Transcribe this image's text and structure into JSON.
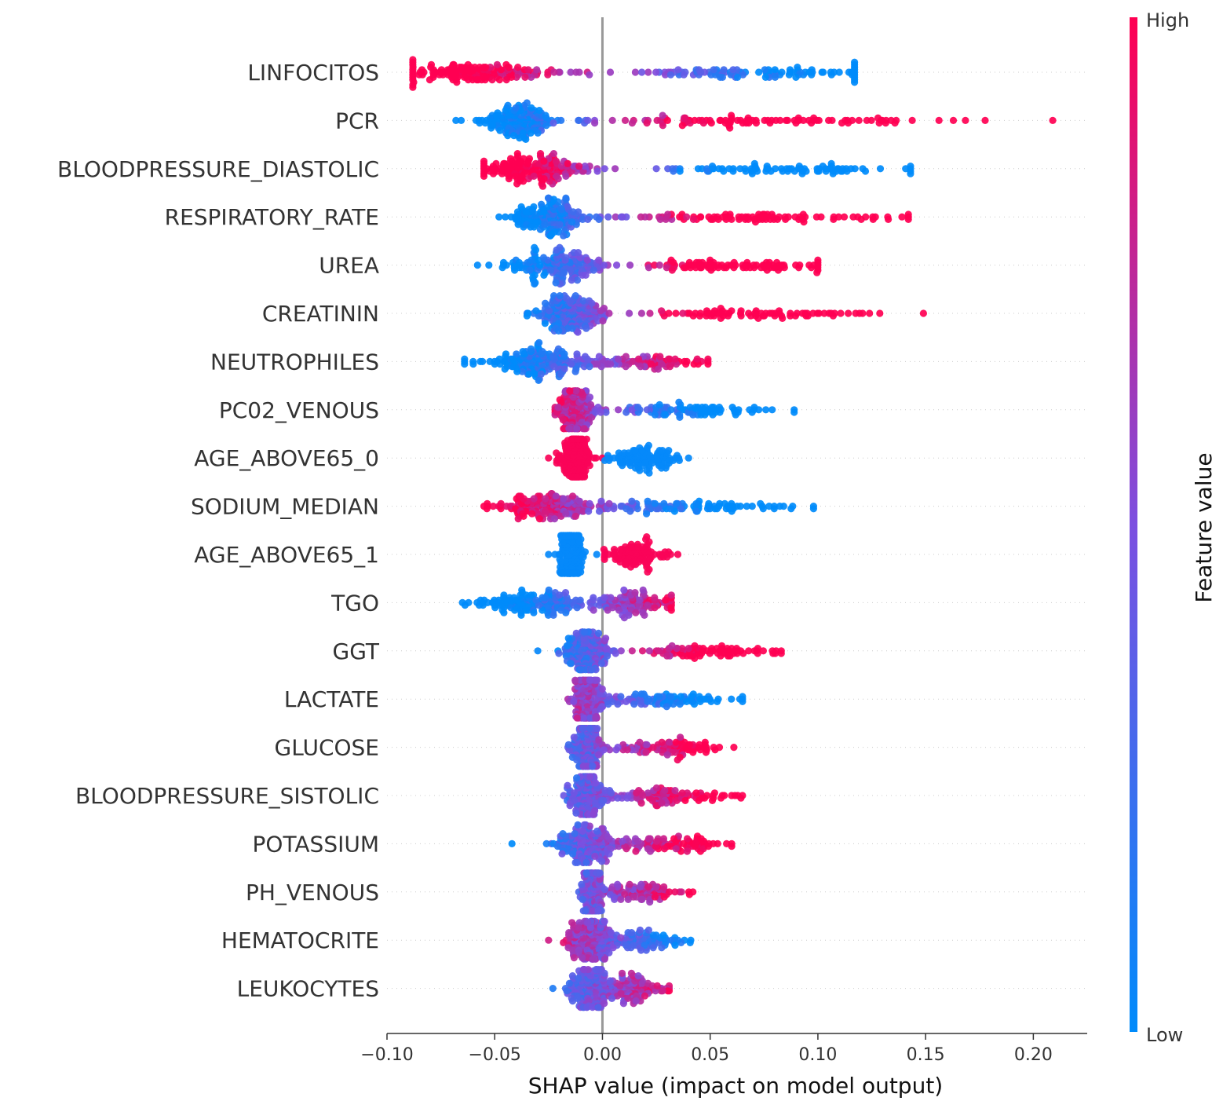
{
  "chart_data": {
    "type": "scatter",
    "subtype": "shap-beeswarm",
    "xlabel": "SHAP value (impact on model output)",
    "xlim": [
      -0.1,
      0.225
    ],
    "xticks": [
      -0.1,
      -0.05,
      0.0,
      0.05,
      0.1,
      0.15,
      0.2
    ],
    "xtick_labels": [
      "−0.10",
      "−0.05",
      "0.00",
      "0.05",
      "0.10",
      "0.15",
      "0.20"
    ],
    "colorbar": {
      "title": "Feature value",
      "high_label": "High",
      "low_label": "Low",
      "high_color": "#ff0052",
      "low_color": "#008bfb"
    },
    "features": [
      {
        "name": "LINFOCITOS",
        "min": -0.088,
        "max": 0.117,
        "c0": -0.055,
        "c1": 0.07,
        "w0": 0.045,
        "w1": 0.06,
        "trend": -1,
        "smin": -0.048,
        "smax": 0.082
      },
      {
        "name": "PCR",
        "min": -0.068,
        "max": 0.209,
        "c0": -0.04,
        "c1": 0.07,
        "w0": 0.018,
        "w1": 0.08,
        "trend": 1,
        "smin": -0.04,
        "smax": 0.04
      },
      {
        "name": "BLOODPRESSURE_DIASTOLIC",
        "min": -0.055,
        "max": 0.143,
        "c0": -0.03,
        "c1": 0.08,
        "w0": 0.03,
        "w1": 0.07,
        "trend": -1,
        "smin": -0.03,
        "smax": 0.045
      },
      {
        "name": "RESPIRATORY_RATE",
        "min": -0.048,
        "max": 0.142,
        "c0": -0.025,
        "c1": 0.065,
        "w0": 0.02,
        "w1": 0.075,
        "trend": 1,
        "smin": -0.03,
        "smax": 0.04
      },
      {
        "name": "UREA",
        "min": -0.058,
        "max": 0.1,
        "c0": -0.022,
        "c1": 0.06,
        "w0": 0.025,
        "w1": 0.045,
        "trend": 1,
        "smin": -0.035,
        "smax": 0.035
      },
      {
        "name": "CREATININ",
        "min": -0.035,
        "max": 0.149,
        "c0": -0.015,
        "c1": 0.07,
        "w0": 0.018,
        "w1": 0.06,
        "trend": 1,
        "smin": -0.035,
        "smax": 0.035
      },
      {
        "name": "NEUTROPHILES",
        "min": -0.064,
        "max": 0.049,
        "c0": -0.03,
        "c1": 0.02,
        "w0": 0.03,
        "w1": 0.028,
        "trend": 1,
        "smin": -0.04,
        "smax": 0.04
      },
      {
        "name": "PC02_VENOUS",
        "min": -0.022,
        "max": 0.089,
        "c0": -0.013,
        "c1": 0.04,
        "w0": 0.01,
        "w1": 0.04,
        "trend": -1,
        "smin": -0.03,
        "smax": 0.04
      },
      {
        "name": "AGE_ABOVE65_0",
        "min": -0.025,
        "max": 0.04,
        "c0": -0.013,
        "c1": 0.018,
        "w0": 0.008,
        "w1": 0.015,
        "trend": -1,
        "smin": -0.5,
        "smax": 0.5
      },
      {
        "name": "SODIUM_MEDIAN",
        "min": -0.055,
        "max": 0.098,
        "c0": -0.025,
        "c1": 0.035,
        "w0": 0.028,
        "w1": 0.045,
        "trend": -1,
        "smin": -0.04,
        "smax": 0.04
      },
      {
        "name": "AGE_ABOVE65_1",
        "min": -0.025,
        "max": 0.035,
        "c0": -0.015,
        "c1": 0.016,
        "w0": 0.007,
        "w1": 0.013,
        "trend": 1,
        "smin": -0.5,
        "smax": 0.5
      },
      {
        "name": "TGO",
        "min": -0.065,
        "max": 0.032,
        "c0": -0.03,
        "c1": 0.015,
        "w0": 0.03,
        "w1": 0.016,
        "trend": 1,
        "smin": -0.035,
        "smax": 0.035
      },
      {
        "name": "GGT",
        "min": -0.03,
        "max": 0.083,
        "c0": -0.008,
        "c1": 0.045,
        "w0": 0.012,
        "w1": 0.035,
        "trend": 1,
        "smin": -0.03,
        "smax": 0.04
      },
      {
        "name": "LACTATE",
        "min": -0.016,
        "max": 0.065,
        "c0": -0.007,
        "c1": 0.03,
        "w0": 0.008,
        "w1": 0.03,
        "trend": -1,
        "smin": -0.04,
        "smax": 0.04
      },
      {
        "name": "GLUCOSE",
        "min": -0.016,
        "max": 0.061,
        "c0": -0.007,
        "c1": 0.03,
        "w0": 0.008,
        "w1": 0.025,
        "trend": 1,
        "smin": -0.04,
        "smax": 0.04
      },
      {
        "name": "BLOODPRESSURE_SISTOLIC",
        "min": -0.018,
        "max": 0.065,
        "c0": -0.007,
        "c1": 0.03,
        "w0": 0.01,
        "w1": 0.028,
        "trend": 1,
        "smin": -0.04,
        "smax": 0.04
      },
      {
        "name": "POTASSIUM",
        "min": -0.042,
        "max": 0.06,
        "c0": -0.007,
        "c1": 0.03,
        "w0": 0.015,
        "w1": 0.025,
        "trend": 1,
        "smin": -0.04,
        "smax": 0.04
      },
      {
        "name": "PH_VENOUS",
        "min": -0.011,
        "max": 0.042,
        "c0": -0.005,
        "c1": 0.018,
        "w0": 0.005,
        "w1": 0.018,
        "trend": 1,
        "smin": -0.04,
        "smax": 0.04
      },
      {
        "name": "HEMATOCRITE",
        "min": -0.025,
        "max": 0.041,
        "c0": -0.005,
        "c1": 0.018,
        "w0": 0.012,
        "w1": 0.018,
        "trend": -1,
        "smin": -0.04,
        "smax": 0.04
      },
      {
        "name": "LEUKOCYTES",
        "min": -0.023,
        "max": 0.031,
        "c0": -0.005,
        "c1": 0.015,
        "w0": 0.012,
        "w1": 0.012,
        "trend": 1,
        "smin": -0.04,
        "smax": 0.04
      }
    ]
  }
}
